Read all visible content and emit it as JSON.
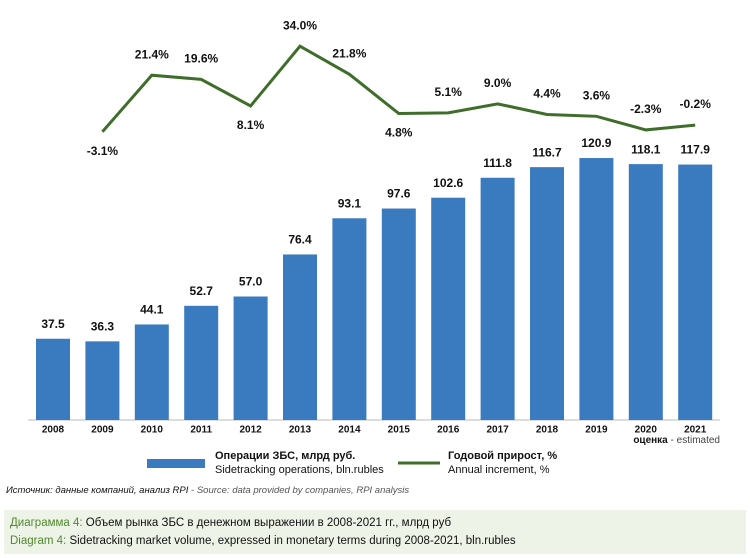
{
  "chart_data": {
    "type": "bar",
    "categories": [
      "2008",
      "2009",
      "2010",
      "2011",
      "2012",
      "2013",
      "2014",
      "2015",
      "2016",
      "2017",
      "2018",
      "2019",
      "2020",
      "2021"
    ],
    "ylim": [
      0,
      180
    ],
    "y2lim": [
      -128,
      41
    ],
    "series": [
      {
        "name": "Операции ЗБС, млрд руб.",
        "name_en": "Sidetracking operations, bln.rubles",
        "type": "bar",
        "color": "#3a7bbf",
        "values": [
          37.5,
          36.3,
          44.1,
          52.7,
          57.0,
          76.4,
          93.1,
          97.6,
          102.6,
          111.8,
          116.7,
          120.9,
          118.1,
          117.9
        ],
        "value_labels": [
          "37.5",
          "36.3",
          "44.1",
          "52.7",
          "57.0",
          "76.4",
          "93.1",
          "97.6",
          "102.6",
          "111.8",
          "116.7",
          "120.9",
          "118.1",
          "117.9"
        ]
      },
      {
        "name": "Годовой прирост, %",
        "name_en": "Annual increment, %",
        "type": "line",
        "axis": "y2",
        "color": "#3f6e2b",
        "values": [
          null,
          -3.1,
          21.4,
          19.6,
          8.1,
          34.0,
          21.8,
          4.8,
          5.1,
          9.0,
          4.4,
          3.6,
          -2.3,
          -0.2
        ],
        "value_labels": [
          null,
          "-3.1%",
          "21.4%",
          "19.6%",
          "8.1%",
          "34.0%",
          "21.8%",
          "4.8%",
          "5.1%",
          "9.0%",
          "4.4%",
          "3.6%",
          "-2.3%",
          "-0.2%"
        ]
      }
    ],
    "annotation": {
      "bold": "оценка",
      "rest": " - estimated"
    },
    "source": {
      "ru": "Источник: данные компаний, анализ RPI",
      "en": " - Source: data provided by companies, RPI analysis"
    },
    "caption": [
      {
        "prefix": "Диаграмма 4:",
        "text": " Объем рынка ЗБС в денежном выражении в 2008-2021 гг., млрд руб"
      },
      {
        "prefix": "Diagram 4:",
        "text": " Sidetracking market volume, expressed in monetary terms during 2008-2021, bln.rubles"
      }
    ]
  }
}
